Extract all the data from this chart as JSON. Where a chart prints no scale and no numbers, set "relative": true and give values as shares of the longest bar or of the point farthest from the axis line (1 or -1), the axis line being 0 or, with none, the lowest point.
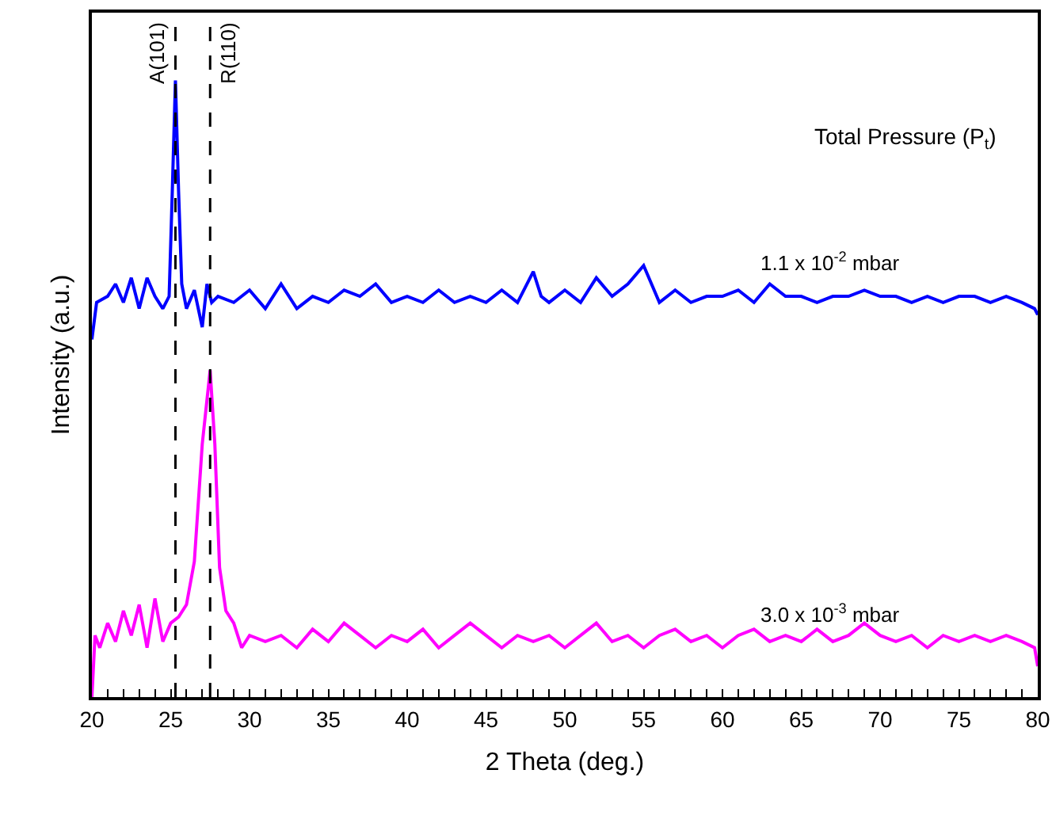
{
  "chart_data": {
    "type": "line",
    "relative": true,
    "xlabel": "2 Theta (deg.)",
    "ylabel": "Intensity (a.u.)",
    "legend_title": "Total Pressure (P$_{t}$)",
    "xlim": [
      20,
      80
    ],
    "xticks": [
      20,
      {
        "value": 21,
        "label": null
      },
      {
        "value": 22,
        "label": null
      },
      {
        "value": 23,
        "label": null
      },
      {
        "value": 24,
        "label": null
      },
      25,
      {
        "value": 26,
        "label": null
      },
      {
        "value": 27,
        "label": null
      },
      {
        "value": 28,
        "label": null
      },
      {
        "value": 29,
        "label": null
      },
      30,
      {
        "value": 31,
        "label": null
      },
      {
        "value": 32,
        "label": null
      },
      {
        "value": 33,
        "label": null
      },
      {
        "value": 34,
        "label": null
      },
      35,
      {
        "value": 36,
        "label": null
      },
      {
        "value": 37,
        "label": null
      },
      {
        "value": 38,
        "label": null
      },
      {
        "value": 39,
        "label": null
      },
      40,
      {
        "value": 41,
        "label": null
      },
      {
        "value": 42,
        "label": null
      },
      {
        "value": 43,
        "label": null
      },
      {
        "value": 44,
        "label": null
      },
      45,
      {
        "value": 46,
        "label": null
      },
      {
        "value": 47,
        "label": null
      },
      {
        "value": 48,
        "label": null
      },
      {
        "value": 49,
        "label": null
      },
      50,
      {
        "value": 51,
        "label": null
      },
      {
        "value": 52,
        "label": null
      },
      {
        "value": 53,
        "label": null
      },
      {
        "value": 54,
        "label": null
      },
      55,
      {
        "value": 56,
        "label": null
      },
      {
        "value": 57,
        "label": null
      },
      {
        "value": 58,
        "label": null
      },
      {
        "value": 59,
        "label": null
      },
      60,
      {
        "value": 61,
        "label": null
      },
      {
        "value": 62,
        "label": null
      },
      {
        "value": 63,
        "label": null
      },
      {
        "value": 64,
        "label": null
      },
      65,
      {
        "value": 66,
        "label": null
      },
      {
        "value": 67,
        "label": null
      },
      {
        "value": 68,
        "label": null
      },
      {
        "value": 69,
        "label": null
      },
      70,
      {
        "value": 71,
        "label": null
      },
      {
        "value": 72,
        "label": null
      },
      {
        "value": 73,
        "label": null
      },
      {
        "value": 74,
        "label": null
      },
      75,
      {
        "value": 76,
        "label": null
      },
      {
        "value": 77,
        "label": null
      },
      {
        "value": 78,
        "label": null
      },
      {
        "value": 79,
        "label": null
      },
      80
    ],
    "marker": "none",
    "line_style": "solid",
    "grid": false,
    "ref_lines": [
      {
        "axis": "x",
        "value": 25.3,
        "label": "A(101)",
        "color": "#000000",
        "line_style": "dashed"
      },
      {
        "axis": "x",
        "value": 27.5,
        "label": "R(110)",
        "color": "#000000",
        "line_style": "dashed"
      }
    ],
    "series": [
      {
        "name": "1.1 x 10$^{-2}$ mbar",
        "color": "#0000ff",
        "x": [
          20,
          20.3,
          21,
          21.5,
          22,
          22.5,
          23,
          23.5,
          24,
          24.5,
          24.9,
          25.1,
          25.3,
          25.5,
          25.7,
          26,
          26.5,
          27,
          27.3,
          27.6,
          28,
          29,
          30,
          31,
          32,
          33,
          34,
          35,
          36,
          37,
          38,
          39,
          40,
          41,
          42,
          43,
          44,
          45,
          46,
          47,
          48,
          48.5,
          49,
          50,
          51,
          52,
          53,
          54,
          55,
          55.5,
          56,
          57,
          58,
          59,
          60,
          61,
          62,
          63,
          64,
          65,
          66,
          67,
          68,
          69,
          70,
          71,
          72,
          73,
          74,
          75,
          76,
          77,
          78,
          79,
          79.8,
          80
        ],
        "values": [
          0.58,
          0.64,
          0.65,
          0.67,
          0.64,
          0.68,
          0.63,
          0.68,
          0.65,
          0.63,
          0.65,
          0.82,
          1.0,
          0.82,
          0.67,
          0.63,
          0.66,
          0.6,
          0.67,
          0.64,
          0.65,
          0.64,
          0.66,
          0.63,
          0.67,
          0.63,
          0.65,
          0.64,
          0.66,
          0.65,
          0.67,
          0.64,
          0.65,
          0.64,
          0.66,
          0.64,
          0.65,
          0.64,
          0.66,
          0.64,
          0.69,
          0.65,
          0.64,
          0.66,
          0.64,
          0.68,
          0.65,
          0.67,
          0.7,
          0.67,
          0.64,
          0.66,
          0.64,
          0.65,
          0.65,
          0.66,
          0.64,
          0.67,
          0.65,
          0.65,
          0.64,
          0.65,
          0.65,
          0.66,
          0.65,
          0.65,
          0.64,
          0.65,
          0.64,
          0.65,
          0.65,
          0.64,
          0.65,
          0.64,
          0.63,
          0.62
        ]
      },
      {
        "name": "3.0 x 10$^{-3}$ mbar",
        "color": "#ff00ff",
        "x": [
          20,
          20.2,
          20.5,
          21,
          21.5,
          22,
          22.5,
          23,
          23.5,
          24,
          24.5,
          25,
          25.5,
          26,
          26.5,
          27,
          27.5,
          27.8,
          28.1,
          28.5,
          29,
          29.5,
          30,
          31,
          32,
          33,
          34,
          35,
          36,
          37,
          38,
          39,
          40,
          41,
          42,
          43,
          44,
          45,
          46,
          47,
          48,
          49,
          50,
          51,
          52,
          53,
          54,
          55,
          56,
          57,
          58,
          59,
          60,
          61,
          62,
          63,
          64,
          65,
          66,
          67,
          68,
          69,
          70,
          71,
          72,
          73,
          74,
          75,
          76,
          77,
          78,
          79,
          79.8,
          80
        ],
        "values": [
          0,
          0.1,
          0.08,
          0.12,
          0.09,
          0.14,
          0.1,
          0.15,
          0.08,
          0.16,
          0.09,
          0.12,
          0.13,
          0.15,
          0.22,
          0.41,
          0.53,
          0.41,
          0.21,
          0.14,
          0.12,
          0.08,
          0.1,
          0.09,
          0.1,
          0.08,
          0.11,
          0.09,
          0.12,
          0.1,
          0.08,
          0.1,
          0.09,
          0.11,
          0.08,
          0.1,
          0.12,
          0.1,
          0.08,
          0.1,
          0.09,
          0.1,
          0.08,
          0.1,
          0.12,
          0.09,
          0.1,
          0.08,
          0.1,
          0.11,
          0.09,
          0.1,
          0.08,
          0.1,
          0.11,
          0.09,
          0.1,
          0.09,
          0.11,
          0.09,
          0.1,
          0.12,
          0.1,
          0.09,
          0.1,
          0.08,
          0.1,
          0.09,
          0.1,
          0.09,
          0.1,
          0.09,
          0.08,
          0.05
        ]
      }
    ]
  }
}
